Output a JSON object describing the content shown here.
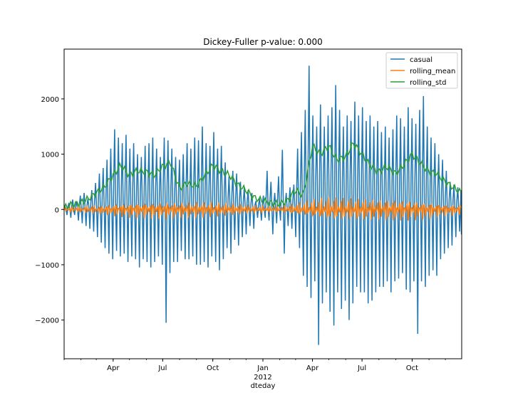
{
  "chart_data": {
    "type": "line",
    "title": "Dickey-Fuller p-value: 0.000",
    "xlabel": "dteday",
    "ylabel": "",
    "x_range": [
      "2011-01-01",
      "2012-12-31"
    ],
    "ylim": [
      -2700,
      2900
    ],
    "x_ticks": [
      {
        "date": "2011-04-01",
        "label": "Apr"
      },
      {
        "date": "2011-07-01",
        "label": "Jul"
      },
      {
        "date": "2011-10-01",
        "label": "Oct"
      },
      {
        "date": "2012-01-01",
        "label": "Jan",
        "sublabel": "2012"
      },
      {
        "date": "2012-04-01",
        "label": "Apr"
      },
      {
        "date": "2012-07-01",
        "label": "Jul"
      },
      {
        "date": "2012-10-01",
        "label": "Oct"
      }
    ],
    "y_ticks": [
      {
        "value": 2000,
        "label": "2000"
      },
      {
        "value": 1000,
        "label": "1000"
      },
      {
        "value": 0,
        "label": "0"
      },
      {
        "value": -1000,
        "label": "−1000"
      },
      {
        "value": -2000,
        "label": "−2000"
      }
    ],
    "grid": false,
    "legend_position": "top-right",
    "series": [
      {
        "name": "casual",
        "color": "#1f77b4",
        "x": [
          "2011-01-01",
          "2011-01-08",
          "2011-01-15",
          "2011-01-22",
          "2011-01-29",
          "2011-02-05",
          "2011-02-12",
          "2011-02-19",
          "2011-02-26",
          "2011-03-05",
          "2011-03-12",
          "2011-03-19",
          "2011-03-26",
          "2011-04-02",
          "2011-04-09",
          "2011-04-16",
          "2011-04-23",
          "2011-04-30",
          "2011-05-07",
          "2011-05-14",
          "2011-05-21",
          "2011-05-28",
          "2011-06-04",
          "2011-06-11",
          "2011-06-18",
          "2011-06-25",
          "2011-07-02",
          "2011-07-09",
          "2011-07-16",
          "2011-07-23",
          "2011-07-30",
          "2011-08-06",
          "2011-08-13",
          "2011-08-20",
          "2011-08-27",
          "2011-09-03",
          "2011-09-10",
          "2011-09-17",
          "2011-09-24",
          "2011-10-01",
          "2011-10-08",
          "2011-10-15",
          "2011-10-22",
          "2011-10-29",
          "2011-11-05",
          "2011-11-12",
          "2011-11-19",
          "2011-11-26",
          "2011-12-03",
          "2011-12-10",
          "2011-12-17",
          "2011-12-24",
          "2011-12-31",
          "2012-01-07",
          "2012-01-14",
          "2012-01-21",
          "2012-01-28",
          "2012-02-04",
          "2012-02-11",
          "2012-02-18",
          "2012-02-25",
          "2012-03-03",
          "2012-03-10",
          "2012-03-17",
          "2012-03-24",
          "2012-03-31",
          "2012-04-07",
          "2012-04-14",
          "2012-04-21",
          "2012-04-28",
          "2012-05-05",
          "2012-05-12",
          "2012-05-19",
          "2012-05-26",
          "2012-06-02",
          "2012-06-09",
          "2012-06-16",
          "2012-06-23",
          "2012-06-30",
          "2012-07-07",
          "2012-07-14",
          "2012-07-21",
          "2012-07-28",
          "2012-08-04",
          "2012-08-11",
          "2012-08-18",
          "2012-08-25",
          "2012-09-01",
          "2012-09-08",
          "2012-09-15",
          "2012-09-22",
          "2012-09-29",
          "2012-10-06",
          "2012-10-13",
          "2012-10-20",
          "2012-10-27",
          "2012-11-03",
          "2012-11-10",
          "2012-11-17",
          "2012-11-24",
          "2012-12-01",
          "2012-12-08",
          "2012-12-15",
          "2012-12-22",
          "2012-12-29"
        ],
        "y_high": [
          50,
          120,
          180,
          150,
          250,
          300,
          200,
          350,
          480,
          650,
          750,
          900,
          1100,
          1450,
          1300,
          1200,
          1350,
          1100,
          1200,
          1000,
          950,
          1150,
          1200,
          1300,
          1100,
          950,
          1300,
          1250,
          1100,
          950,
          900,
          1000,
          1200,
          1100,
          1300,
          1250,
          1500,
          1200,
          1150,
          1400,
          1100,
          1150,
          850,
          600,
          700,
          650,
          500,
          400,
          350,
          300,
          150,
          200,
          250,
          700,
          500,
          300,
          600,
          1080,
          300,
          400,
          450,
          1100,
          1400,
          1800,
          2600,
          1700,
          1500,
          1900,
          1500,
          1700,
          1850,
          2250,
          1800,
          1500,
          1700,
          1600,
          1950,
          1700,
          1850,
          1600,
          1700,
          1500,
          1600,
          1400,
          1500,
          1300,
          1450,
          1700,
          1650,
          1500,
          1850,
          1650,
          1550,
          1800,
          2050,
          1500,
          1300,
          1200,
          1000,
          900,
          700,
          500,
          450,
          400,
          350
        ],
        "y_low": [
          -100,
          -150,
          -100,
          -200,
          -250,
          -300,
          -350,
          -400,
          -500,
          -600,
          -700,
          -800,
          -900,
          -750,
          -850,
          -800,
          -950,
          -850,
          -900,
          -1050,
          -900,
          -950,
          -1050,
          -950,
          -850,
          -1000,
          -2050,
          -1150,
          -950,
          -950,
          -750,
          -900,
          -900,
          -850,
          -1000,
          -1000,
          -950,
          -1050,
          -850,
          -950,
          -1100,
          -900,
          -700,
          -800,
          -550,
          -650,
          -500,
          -450,
          -300,
          -350,
          -150,
          -200,
          -150,
          -200,
          -450,
          -250,
          -200,
          -800,
          -300,
          -350,
          -500,
          -700,
          -1200,
          -1400,
          -1600,
          -1300,
          -2450,
          -1700,
          -1500,
          -1850,
          -2100,
          -1500,
          -1800,
          -1650,
          -2000,
          -1700,
          -1400,
          -1500,
          -1500,
          -1700,
          -1650,
          -1500,
          -1400,
          -1400,
          -1300,
          -1500,
          -1300,
          -1250,
          -1150,
          -1450,
          -1500,
          -1300,
          -2250,
          -1300,
          -1400,
          -1200,
          -1100,
          -1200,
          -900,
          -800,
          -700,
          -650,
          -500,
          -400,
          -450
        ]
      },
      {
        "name": "rolling_mean",
        "color": "#ff7f0e",
        "x": [
          "2011-01-01",
          "2011-02-01",
          "2011-03-01",
          "2011-04-01",
          "2011-05-01",
          "2011-06-01",
          "2011-07-01",
          "2011-08-01",
          "2011-09-01",
          "2011-10-01",
          "2011-11-01",
          "2011-12-01",
          "2012-01-01",
          "2012-02-01",
          "2012-03-01",
          "2012-04-01",
          "2012-05-01",
          "2012-06-01",
          "2012-07-01",
          "2012-08-01",
          "2012-09-01",
          "2012-10-01",
          "2012-11-01",
          "2012-12-01",
          "2012-12-31"
        ],
        "y_amplitude": [
          40,
          60,
          80,
          130,
          160,
          170,
          180,
          160,
          170,
          160,
          130,
          100,
          70,
          60,
          120,
          200,
          250,
          240,
          230,
          220,
          230,
          220,
          180,
          130,
          100
        ]
      },
      {
        "name": "rolling_std",
        "color": "#2ca02c",
        "x": [
          "2011-01-01",
          "2011-01-15",
          "2011-02-01",
          "2011-02-15",
          "2011-03-01",
          "2011-03-15",
          "2011-04-01",
          "2011-04-15",
          "2011-05-01",
          "2011-05-15",
          "2011-06-01",
          "2011-06-15",
          "2011-07-01",
          "2011-07-15",
          "2011-08-01",
          "2011-08-15",
          "2011-09-01",
          "2011-09-15",
          "2011-10-01",
          "2011-10-15",
          "2011-11-01",
          "2011-11-15",
          "2011-12-01",
          "2011-12-15",
          "2012-01-01",
          "2012-01-15",
          "2012-02-01",
          "2012-02-15",
          "2012-03-01",
          "2012-03-15",
          "2012-04-01",
          "2012-04-15",
          "2012-05-01",
          "2012-05-15",
          "2012-06-01",
          "2012-06-15",
          "2012-07-01",
          "2012-07-15",
          "2012-08-01",
          "2012-08-15",
          "2012-09-01",
          "2012-09-15",
          "2012-10-01",
          "2012-10-15",
          "2012-11-01",
          "2012-11-15",
          "2012-12-01",
          "2012-12-15",
          "2012-12-31"
        ],
        "y": [
          30,
          90,
          120,
          200,
          300,
          400,
          620,
          800,
          620,
          700,
          680,
          620,
          780,
          850,
          380,
          480,
          420,
          600,
          800,
          700,
          620,
          450,
          350,
          220,
          160,
          120,
          100,
          160,
          350,
          250,
          1150,
          1000,
          1150,
          900,
          950,
          1200,
          1000,
          800,
          680,
          780,
          650,
          800,
          1000,
          850,
          680,
          650,
          500,
          400,
          300
        ]
      }
    ]
  }
}
